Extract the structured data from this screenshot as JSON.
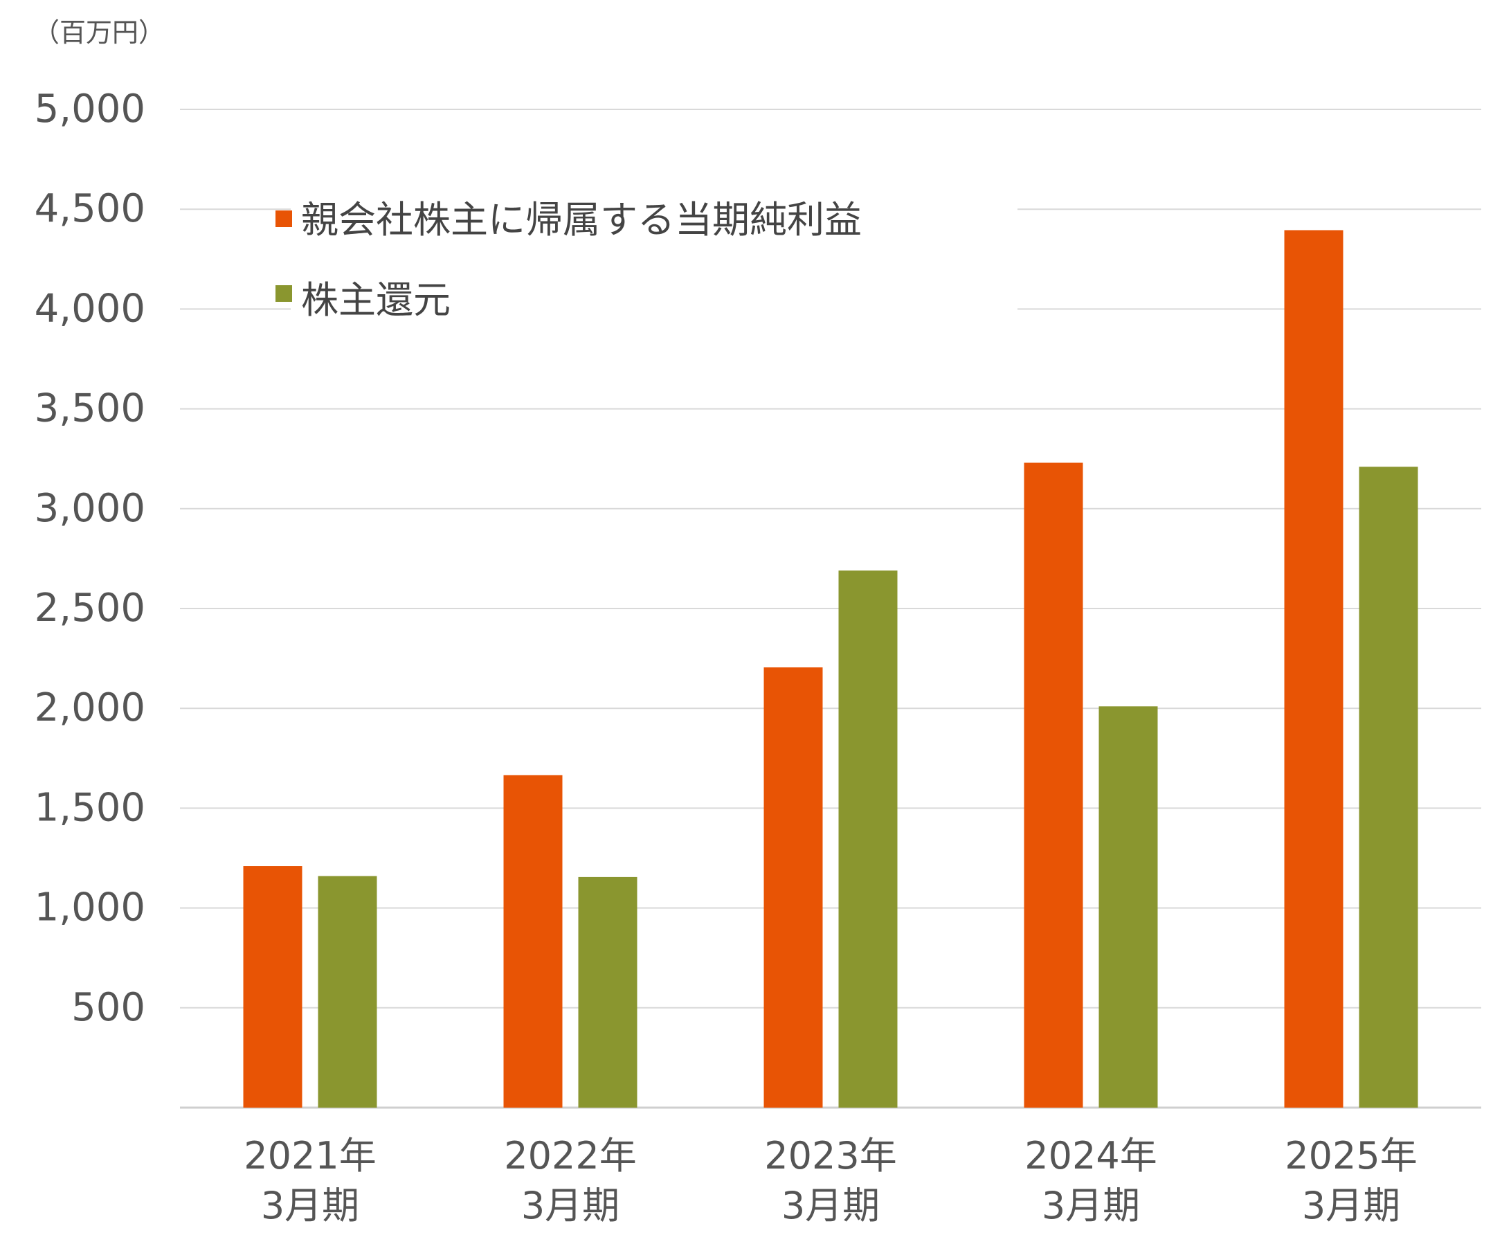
{
  "chart_data": {
    "type": "bar",
    "unit_label": "（百万円）",
    "categories": [
      [
        "2021年",
        "3月期"
      ],
      [
        "2022年",
        "3月期"
      ],
      [
        "2023年",
        "3月期"
      ],
      [
        "2024年",
        "3月期"
      ],
      [
        "2025年",
        "3月期"
      ]
    ],
    "series": [
      {
        "name": "親会社株主に帰属する当期純利益",
        "color": "#E85405",
        "values": [
          1210,
          1665,
          2205,
          3230,
          4395
        ]
      },
      {
        "name": "株主還元",
        "color": "#8A962F",
        "values": [
          1160,
          1155,
          2690,
          2010,
          3210
        ]
      }
    ],
    "y_ticks": [
      "500",
      "1,000",
      "1,500",
      "2,000",
      "2,500",
      "3,000",
      "3,500",
      "4,000",
      "4,500",
      "5,000"
    ],
    "ylim": [
      0,
      5000
    ],
    "grid": true,
    "legend_position": "top-left"
  }
}
